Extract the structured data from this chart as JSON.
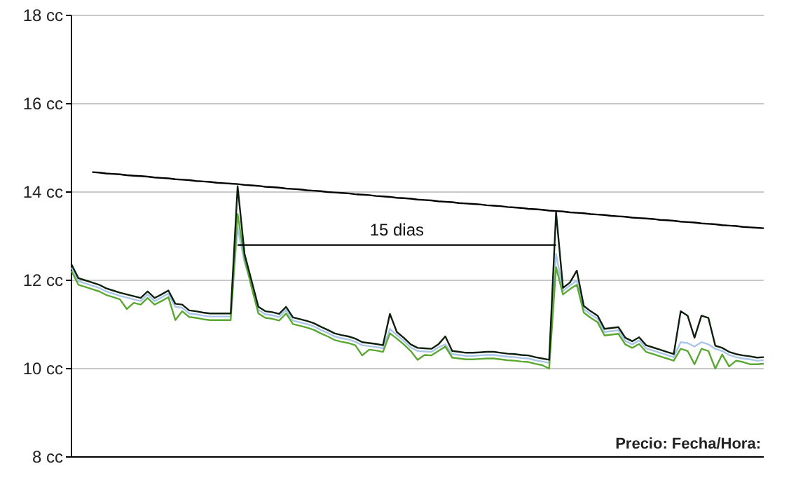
{
  "chart_data": {
    "type": "line",
    "ylim": [
      8,
      18
    ],
    "yticks": [
      {
        "value": 8,
        "label": "8 cc"
      },
      {
        "value": 10,
        "label": "10 cc"
      },
      {
        "value": 12,
        "label": "12 cc"
      },
      {
        "value": 14,
        "label": "14 cc"
      },
      {
        "value": 16,
        "label": "16 cc"
      },
      {
        "value": 18,
        "label": "18 cc"
      }
    ],
    "grid": "y",
    "categories": [
      null,
      null,
      null,
      null,
      null,
      null,
      null,
      null,
      null,
      null,
      null,
      null,
      null,
      null,
      null,
      null,
      null,
      null,
      null,
      null,
      null,
      null,
      null,
      null,
      null,
      null,
      null,
      null,
      null,
      null,
      null,
      null,
      null,
      null,
      null,
      null,
      null,
      null,
      null,
      null,
      null,
      null,
      null,
      null,
      null,
      null,
      null,
      null,
      null,
      null,
      null,
      null,
      null,
      null,
      null,
      null,
      null,
      null,
      null,
      null,
      null,
      null,
      null,
      null,
      null,
      null,
      null,
      null,
      null,
      null,
      null,
      null,
      null,
      null,
      null,
      null,
      null,
      null,
      null,
      null,
      null,
      null,
      null,
      null,
      null,
      null,
      null,
      null,
      null,
      null,
      null,
      null,
      null,
      null,
      null,
      null,
      null,
      null,
      null,
      null,
      null
    ],
    "series": [
      {
        "color": "#a9c5e8",
        "values": [
          12.29,
          11.98,
          11.93,
          11.88,
          11.83,
          11.75,
          11.7,
          11.65,
          11.61,
          11.57,
          11.53,
          11.68,
          11.53,
          11.61,
          11.7,
          11.4,
          11.38,
          11.25,
          11.23,
          11.2,
          11.18,
          11.18,
          11.18,
          11.18,
          13.2,
          12.4,
          11.93,
          11.33,
          11.23,
          11.21,
          11.17,
          11.33,
          11.09,
          11.05,
          11.01,
          10.96,
          10.88,
          10.81,
          10.73,
          10.69,
          10.66,
          10.61,
          10.53,
          10.51,
          10.49,
          10.46,
          10.9,
          10.76,
          10.63,
          10.48,
          10.4,
          10.39,
          10.38,
          10.48,
          10.55,
          10.33,
          10.31,
          10.29,
          10.29,
          10.3,
          10.31,
          10.31,
          10.29,
          10.27,
          10.26,
          10.24,
          10.23,
          10.19,
          10.16,
          10.13,
          12.6,
          11.76,
          11.88,
          12.0,
          11.35,
          11.23,
          11.13,
          10.83,
          10.85,
          10.87,
          10.63,
          10.55,
          10.64,
          10.46,
          10.41,
          10.36,
          10.31,
          10.26,
          10.6,
          10.58,
          10.5,
          10.6,
          10.55,
          10.45,
          10.4,
          10.31,
          10.26,
          10.23,
          10.21,
          10.18,
          10.19
        ]
      },
      {
        "color": "#5aa832",
        "values": [
          12.21,
          11.9,
          11.85,
          11.8,
          11.75,
          11.67,
          11.62,
          11.57,
          11.35,
          11.49,
          11.45,
          11.6,
          11.45,
          11.53,
          11.62,
          11.1,
          11.3,
          11.17,
          11.15,
          11.12,
          11.1,
          11.1,
          11.1,
          11.1,
          13.5,
          12.5,
          11.85,
          11.25,
          11.15,
          11.13,
          11.09,
          11.25,
          11.01,
          10.97,
          10.93,
          10.88,
          10.8,
          10.73,
          10.65,
          10.61,
          10.58,
          10.53,
          10.3,
          10.43,
          10.41,
          10.38,
          10.8,
          10.68,
          10.55,
          10.4,
          10.2,
          10.31,
          10.3,
          10.4,
          10.5,
          10.25,
          10.23,
          10.21,
          10.21,
          10.22,
          10.23,
          10.23,
          10.21,
          10.19,
          10.18,
          10.16,
          10.15,
          10.11,
          10.08,
          10.0,
          12.3,
          11.68,
          11.8,
          11.9,
          11.27,
          11.15,
          11.05,
          10.75,
          10.77,
          10.79,
          10.55,
          10.47,
          10.56,
          10.38,
          10.33,
          10.28,
          10.23,
          10.18,
          10.45,
          10.4,
          10.1,
          10.45,
          10.4,
          10.0,
          10.32,
          10.05,
          10.18,
          10.15,
          10.1,
          10.1,
          10.11
        ]
      },
      {
        "color": "#0d1f0d",
        "values": [
          12.36,
          12.05,
          12.0,
          11.95,
          11.9,
          11.82,
          11.77,
          11.72,
          11.68,
          11.64,
          11.6,
          11.75,
          11.6,
          11.68,
          11.77,
          11.47,
          11.45,
          11.32,
          11.3,
          11.27,
          11.25,
          11.25,
          11.25,
          11.25,
          14.13,
          12.6,
          12.0,
          11.4,
          11.3,
          11.28,
          11.24,
          11.4,
          11.16,
          11.12,
          11.08,
          11.03,
          10.95,
          10.88,
          10.8,
          10.76,
          10.73,
          10.68,
          10.6,
          10.58,
          10.56,
          10.53,
          11.24,
          10.83,
          10.7,
          10.55,
          10.47,
          10.46,
          10.45,
          10.55,
          10.73,
          10.4,
          10.38,
          10.36,
          10.36,
          10.37,
          10.38,
          10.38,
          10.36,
          10.34,
          10.33,
          10.31,
          10.3,
          10.26,
          10.23,
          10.2,
          13.54,
          11.83,
          11.95,
          12.22,
          11.42,
          11.3,
          11.2,
          10.9,
          10.92,
          10.94,
          10.7,
          10.62,
          10.71,
          10.53,
          10.48,
          10.43,
          10.38,
          10.33,
          11.3,
          11.2,
          10.7,
          11.2,
          11.15,
          10.52,
          10.47,
          10.38,
          10.33,
          10.3,
          10.28,
          10.25,
          10.26
        ]
      },
      {
        "color": "#000000",
        "values": [
          null,
          null,
          null,
          14.45,
          14.44,
          14.42,
          14.41,
          14.4,
          14.38,
          14.37,
          14.36,
          14.35,
          14.33,
          14.32,
          14.31,
          14.29,
          14.28,
          14.27,
          14.25,
          14.24,
          14.23,
          14.21,
          14.2,
          14.19,
          14.18,
          14.16,
          14.15,
          14.14,
          14.12,
          14.11,
          14.1,
          14.08,
          14.07,
          14.06,
          14.04,
          14.03,
          14.02,
          14.0,
          13.99,
          13.98,
          13.97,
          13.95,
          13.94,
          13.93,
          13.91,
          13.9,
          13.89,
          13.87,
          13.86,
          13.85,
          13.83,
          13.82,
          13.81,
          13.79,
          13.78,
          13.77,
          13.75,
          13.74,
          13.73,
          13.72,
          13.7,
          13.69,
          13.68,
          13.66,
          13.65,
          13.64,
          13.62,
          13.61,
          13.6,
          13.58,
          13.57,
          13.56,
          13.54,
          13.53,
          13.52,
          13.5,
          13.49,
          13.48,
          13.46,
          13.45,
          13.44,
          13.42,
          13.41,
          13.4,
          13.39,
          13.37,
          13.36,
          13.35,
          13.33,
          13.32,
          13.31,
          13.29,
          13.28,
          13.27,
          13.25,
          13.24,
          13.23,
          13.21,
          13.2,
          13.19,
          13.18
        ]
      },
      {
        "color": "#000000",
        "values": [
          null,
          null,
          null,
          null,
          null,
          null,
          null,
          null,
          null,
          null,
          null,
          null,
          null,
          null,
          null,
          null,
          null,
          null,
          null,
          null,
          null,
          null,
          null,
          null,
          12.8,
          12.8,
          12.8,
          12.8,
          12.8,
          12.8,
          12.8,
          12.8,
          12.8,
          12.8,
          12.8,
          12.8,
          12.8,
          12.8,
          12.8,
          12.8,
          12.8,
          12.8,
          12.8,
          12.8,
          12.8,
          12.8,
          12.8,
          12.8,
          12.8,
          12.8,
          12.8,
          12.8,
          12.8,
          12.8,
          12.8,
          12.8,
          12.8,
          12.8,
          12.8,
          12.8,
          12.8,
          12.8,
          12.8,
          12.8,
          12.8,
          12.8,
          12.8,
          12.8,
          12.8,
          12.8,
          12.8,
          null,
          null,
          null,
          null,
          null,
          null,
          null,
          null,
          null,
          null,
          null,
          null,
          null,
          null,
          null,
          null,
          null,
          null,
          null,
          null,
          null,
          null,
          null,
          null,
          null,
          null,
          null,
          null,
          null,
          null
        ]
      }
    ],
    "annotations": [
      {
        "text": "15 dias",
        "y": 12.8
      },
      "Precio: Fecha/Hora:"
    ]
  }
}
